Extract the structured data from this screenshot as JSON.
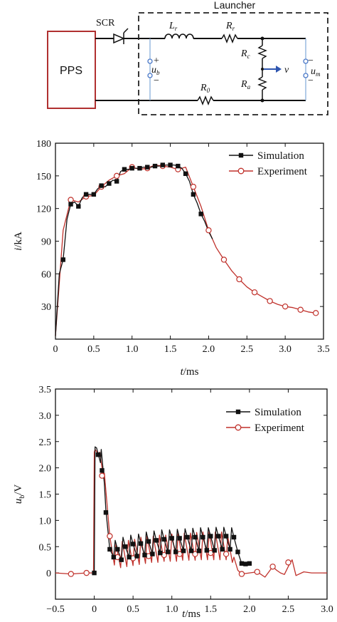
{
  "circuit": {
    "source_label": "PPS",
    "switch_label": "SCR",
    "box_title": "Launcher",
    "inductor_label": "L",
    "inductor_sub": "r",
    "rail_resistor_label": "R",
    "rail_resistor_sub": "r",
    "return_resistor_label": "R",
    "return_resistor_sub": "0",
    "contact_resistor_label": "R",
    "contact_resistor_sub": "c",
    "armature_resistor_label": "R",
    "armature_resistor_sub": "a",
    "velocity_label": "v",
    "breech_voltage_label": "u",
    "breech_voltage_sub": "b",
    "muzzle_voltage_label": "u",
    "muzzle_voltage_sub": "m",
    "plus_sign": "+",
    "minus_sign": "−",
    "colors": {
      "source_box": "#b03030",
      "armature_wire": "#7ea8d8",
      "velocity_arrow": "#2f56b0",
      "terminal": "#4a78c8"
    }
  },
  "chart_data": [
    {
      "type": "line",
      "xlabel_var": "t",
      "xlabel_unit": "/ms",
      "ylabel_var": "i",
      "ylabel_unit": "/kA",
      "xlim": [
        0,
        3.5
      ],
      "ylim": [
        0,
        180
      ],
      "xticks": [
        0,
        0.5,
        1.0,
        1.5,
        2.0,
        2.5,
        3.0,
        3.5
      ],
      "xtick_labels": [
        "0",
        "0.5",
        "1.0",
        "1.5",
        "2.0",
        "2.5",
        "3.0",
        "3.5"
      ],
      "yticks": [
        30,
        60,
        90,
        120,
        150,
        180
      ],
      "ytick_labels": [
        "30",
        "60",
        "90",
        "120",
        "150",
        "180"
      ],
      "legend_position": "top-right",
      "series": [
        {
          "name": "Simulation",
          "color": "#111111",
          "marker": "square",
          "x": [
            0,
            0.05,
            0.1,
            0.15,
            0.2,
            0.25,
            0.3,
            0.35,
            0.4,
            0.45,
            0.5,
            0.55,
            0.6,
            0.65,
            0.7,
            0.75,
            0.8,
            0.85,
            0.9,
            0.95,
            1.0,
            1.05,
            1.1,
            1.15,
            1.2,
            1.25,
            1.3,
            1.35,
            1.4,
            1.45,
            1.5,
            1.55,
            1.6,
            1.65,
            1.7,
            1.75,
            1.8,
            1.85,
            1.9,
            1.95,
            2.0,
            2.05
          ],
          "y": [
            3,
            60,
            73,
            110,
            124,
            126,
            122,
            130,
            133,
            133,
            133,
            138,
            141,
            140,
            143,
            146,
            145,
            154,
            156,
            156,
            157,
            157,
            157,
            158,
            158,
            158,
            159,
            159,
            160,
            160,
            160,
            160,
            159,
            157,
            152,
            145,
            133,
            125,
            115,
            108,
            99,
            92
          ],
          "marker_x": [
            0.1,
            0.2,
            0.3,
            0.4,
            0.5,
            0.6,
            0.7,
            0.8,
            0.9,
            1.0,
            1.1,
            1.2,
            1.3,
            1.4,
            1.5,
            1.6,
            1.7,
            1.8,
            1.9
          ],
          "marker_y": [
            73,
            124,
            122,
            133,
            133,
            141,
            143,
            145,
            156,
            157,
            157,
            158,
            159,
            160,
            160,
            159,
            152,
            133,
            115
          ]
        },
        {
          "name": "Experiment",
          "color": "#c0312b",
          "marker": "circle-open",
          "x": [
            0,
            0.1,
            0.2,
            0.3,
            0.4,
            0.5,
            0.6,
            0.7,
            0.8,
            0.9,
            1.0,
            1.1,
            1.2,
            1.3,
            1.4,
            1.5,
            1.6,
            1.7,
            1.8,
            1.9,
            2.0,
            2.1,
            2.2,
            2.3,
            2.4,
            2.5,
            2.6,
            2.7,
            2.8,
            2.9,
            3.0,
            3.1,
            3.2,
            3.3,
            3.4
          ],
          "y": [
            3,
            100,
            128,
            126,
            131,
            132,
            140,
            146,
            150,
            152,
            158,
            156,
            157,
            160,
            159,
            158,
            156,
            158,
            140,
            122,
            100,
            84,
            73,
            63,
            55,
            48,
            43,
            39,
            35,
            32,
            30,
            29,
            27,
            25,
            24
          ],
          "marker_x": [
            0.2,
            0.4,
            0.6,
            0.8,
            1.0,
            1.2,
            1.4,
            1.6,
            1.8,
            2.0,
            2.2,
            2.4,
            2.6,
            2.8,
            3.0,
            3.2,
            3.4
          ],
          "marker_y": [
            128,
            131,
            140,
            150,
            158,
            157,
            159,
            156,
            140,
            100,
            73,
            55,
            43,
            35,
            30,
            27,
            24
          ]
        }
      ]
    },
    {
      "type": "line",
      "xlabel_var": "t",
      "xlabel_unit": "/ms",
      "ylabel_var": "u",
      "ylabel_sub": "b",
      "ylabel_unit": "/V",
      "xlim": [
        -0.5,
        3.0
      ],
      "ylim": [
        -0.5,
        3.5
      ],
      "xticks": [
        -0.5,
        0,
        0.5,
        1.0,
        1.5,
        2.0,
        2.5,
        3.0
      ],
      "xtick_labels": [
        "−0.5",
        "0",
        "0.5",
        "1.0",
        "1.5",
        "2.0",
        "2.5",
        "3.0"
      ],
      "yticks": [
        0,
        0.5,
        1.0,
        1.5,
        2.0,
        2.5,
        3.0,
        3.5
      ],
      "ytick_labels": [
        "0",
        "0.5",
        "1.0",
        "1.5",
        "2.0",
        "2.5",
        "3.0",
        "3.5"
      ],
      "legend_position": "top-right",
      "series": [
        {
          "name": "Simulation",
          "color": "#111111",
          "marker": "square",
          "x": [
            0,
            0.01,
            0.03,
            0.08,
            0.09,
            0.13,
            0.15,
            0.2,
            0.25,
            0.27,
            0.3,
            0.35,
            0.37,
            0.4,
            0.45,
            0.47,
            0.5,
            0.55,
            0.57,
            0.6,
            0.65,
            0.67,
            0.7,
            0.75,
            0.77,
            0.8,
            0.85,
            0.87,
            0.9,
            0.95,
            0.97,
            1.0,
            1.05,
            1.07,
            1.1,
            1.15,
            1.17,
            1.2,
            1.25,
            1.27,
            1.3,
            1.35,
            1.37,
            1.4,
            1.45,
            1.47,
            1.5,
            1.55,
            1.57,
            1.6,
            1.65,
            1.67,
            1.7,
            1.75,
            1.77,
            1.8,
            1.85,
            1.9,
            1.95,
            2.0
          ],
          "y": [
            0,
            2.4,
            2.38,
            2.1,
            2.35,
            1.7,
            1.2,
            0.45,
            0.3,
            0.62,
            0.45,
            0.25,
            0.68,
            0.5,
            0.3,
            0.72,
            0.55,
            0.32,
            0.74,
            0.56,
            0.34,
            0.78,
            0.6,
            0.36,
            0.8,
            0.62,
            0.38,
            0.82,
            0.64,
            0.4,
            0.82,
            0.66,
            0.4,
            0.83,
            0.66,
            0.42,
            0.84,
            0.68,
            0.42,
            0.85,
            0.68,
            0.42,
            0.86,
            0.68,
            0.43,
            0.86,
            0.7,
            0.43,
            0.87,
            0.7,
            0.45,
            0.87,
            0.7,
            0.45,
            0.86,
            0.68,
            0.4,
            0.18,
            0.17,
            0.18
          ],
          "marker_x": [
            0,
            0.05,
            0.1,
            0.15,
            0.2,
            0.25,
            0.3,
            0.35,
            0.4,
            0.45,
            0.5,
            0.55,
            0.6,
            0.65,
            0.7,
            0.75,
            0.8,
            0.85,
            0.9,
            0.95,
            1.0,
            1.05,
            1.1,
            1.15,
            1.2,
            1.25,
            1.3,
            1.35,
            1.4,
            1.45,
            1.5,
            1.55,
            1.6,
            1.65,
            1.7,
            1.75,
            1.8,
            1.85,
            1.9,
            1.95,
            2.0
          ],
          "marker_y": [
            0,
            2.25,
            1.95,
            1.15,
            0.45,
            0.3,
            0.45,
            0.25,
            0.5,
            0.3,
            0.55,
            0.32,
            0.56,
            0.34,
            0.6,
            0.36,
            0.62,
            0.38,
            0.64,
            0.4,
            0.66,
            0.4,
            0.66,
            0.42,
            0.68,
            0.42,
            0.68,
            0.42,
            0.68,
            0.43,
            0.7,
            0.43,
            0.7,
            0.45,
            0.7,
            0.45,
            0.68,
            0.4,
            0.18,
            0.17,
            0.18
          ]
        },
        {
          "name": "Experiment",
          "color": "#c0312b",
          "marker": "circle-open",
          "x": [
            -0.5,
            -0.3,
            -0.1,
            -0.01,
            0,
            0.01,
            0.06,
            0.07,
            0.12,
            0.13,
            0.2,
            0.26,
            0.28,
            0.34,
            0.36,
            0.42,
            0.44,
            0.5,
            0.52,
            0.58,
            0.6,
            0.66,
            0.68,
            0.74,
            0.76,
            0.82,
            0.84,
            0.9,
            0.92,
            0.98,
            1.0,
            1.06,
            1.08,
            1.14,
            1.16,
            1.22,
            1.24,
            1.3,
            1.32,
            1.38,
            1.4,
            1.46,
            1.48,
            1.54,
            1.56,
            1.62,
            1.64,
            1.7,
            1.72,
            1.78,
            1.8,
            1.85,
            1.9,
            2.0,
            2.1,
            2.2,
            2.3,
            2.35,
            2.4,
            2.45,
            2.5,
            2.55,
            2.6,
            2.7,
            2.8,
            3.0
          ],
          "y": [
            0,
            -0.02,
            0,
            0,
            2.3,
            2.35,
            2.25,
            2.3,
            1.8,
            1.9,
            0.7,
            0.15,
            0.55,
            0.1,
            0.6,
            0.12,
            0.62,
            0.14,
            0.64,
            0.16,
            0.68,
            0.18,
            0.7,
            0.2,
            0.7,
            0.2,
            0.72,
            0.22,
            0.72,
            0.22,
            0.74,
            0.22,
            0.75,
            0.24,
            0.76,
            0.24,
            0.76,
            0.24,
            0.77,
            0.25,
            0.78,
            0.25,
            0.78,
            0.25,
            0.78,
            0.25,
            0.78,
            0.25,
            0.7,
            0.2,
            0.3,
            0.05,
            -0.02,
            0,
            0.02,
            -0.08,
            0.12,
            0.05,
            0,
            -0.03,
            0.12,
            0.25,
            -0.05,
            0.02,
            0,
            0
          ],
          "marker_x": [
            -0.3,
            -0.1,
            0.1,
            0.2,
            0.3,
            0.5,
            0.7,
            0.9,
            1.1,
            1.3,
            1.5,
            1.7,
            1.9,
            2.1,
            2.3,
            2.5
          ],
          "marker_y": [
            -0.02,
            0,
            1.85,
            0.7,
            0.3,
            0.28,
            0.32,
            0.34,
            0.36,
            0.36,
            0.38,
            0.36,
            -0.02,
            0.02,
            0.12,
            0.2
          ]
        }
      ]
    }
  ]
}
